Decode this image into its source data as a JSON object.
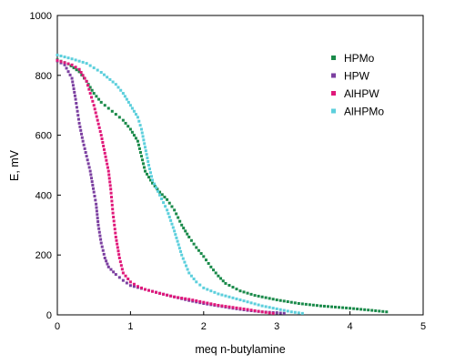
{
  "chart_data": {
    "type": "scatter",
    "xlabel": "meq n-butylamine",
    "ylabel": "E, mV",
    "xlim": [
      0,
      5
    ],
    "ylim": [
      0,
      1000
    ],
    "xticks": [
      "0",
      "1",
      "2",
      "3",
      "4",
      "5"
    ],
    "yticks": [
      "0",
      "200",
      "400",
      "600",
      "800",
      "1000"
    ],
    "grid": false,
    "legend_position": "top-right",
    "series": [
      {
        "name": "HPMo",
        "color": "#1a8a4a",
        "curve": [
          [
            0,
            852
          ],
          [
            0.15,
            838
          ],
          [
            0.3,
            812
          ],
          [
            0.4,
            780
          ],
          [
            0.5,
            740
          ],
          [
            0.6,
            710
          ],
          [
            0.7,
            690
          ],
          [
            0.8,
            670
          ],
          [
            0.9,
            650
          ],
          [
            1.0,
            620
          ],
          [
            1.1,
            580
          ],
          [
            1.15,
            530
          ],
          [
            1.2,
            480
          ],
          [
            1.3,
            440
          ],
          [
            1.4,
            410
          ],
          [
            1.5,
            385
          ],
          [
            1.6,
            350
          ],
          [
            1.7,
            300
          ],
          [
            1.8,
            260
          ],
          [
            1.9,
            225
          ],
          [
            2.0,
            195
          ],
          [
            2.1,
            160
          ],
          [
            2.2,
            130
          ],
          [
            2.3,
            105
          ],
          [
            2.5,
            80
          ],
          [
            2.7,
            65
          ],
          [
            3.0,
            50
          ],
          [
            3.3,
            38
          ],
          [
            3.6,
            30
          ],
          [
            4.0,
            22
          ],
          [
            4.3,
            15
          ],
          [
            4.5,
            10
          ]
        ]
      },
      {
        "name": "HPW",
        "color": "#7b3fa0",
        "curve": [
          [
            0,
            848
          ],
          [
            0.1,
            835
          ],
          [
            0.2,
            790
          ],
          [
            0.25,
            720
          ],
          [
            0.3,
            640
          ],
          [
            0.35,
            580
          ],
          [
            0.4,
            530
          ],
          [
            0.45,
            480
          ],
          [
            0.5,
            410
          ],
          [
            0.53,
            370
          ],
          [
            0.56,
            300
          ],
          [
            0.6,
            240
          ],
          [
            0.65,
            190
          ],
          [
            0.7,
            160
          ],
          [
            0.8,
            135
          ],
          [
            0.9,
            115
          ],
          [
            1.0,
            98
          ],
          [
            1.2,
            85
          ],
          [
            1.4,
            72
          ],
          [
            1.6,
            60
          ],
          [
            1.8,
            48
          ],
          [
            2.0,
            38
          ],
          [
            2.2,
            30
          ],
          [
            2.4,
            22
          ],
          [
            2.6,
            15
          ],
          [
            2.8,
            10
          ],
          [
            3.0,
            7
          ],
          [
            3.1,
            5
          ]
        ]
      },
      {
        "name": "AlHPW",
        "color": "#e0187a",
        "curve": [
          [
            0,
            850
          ],
          [
            0.2,
            835
          ],
          [
            0.3,
            820
          ],
          [
            0.4,
            780
          ],
          [
            0.45,
            740
          ],
          [
            0.5,
            700
          ],
          [
            0.55,
            650
          ],
          [
            0.6,
            600
          ],
          [
            0.65,
            540
          ],
          [
            0.7,
            480
          ],
          [
            0.73,
            420
          ],
          [
            0.76,
            340
          ],
          [
            0.8,
            260
          ],
          [
            0.85,
            190
          ],
          [
            0.9,
            140
          ],
          [
            1.0,
            110
          ],
          [
            1.1,
            95
          ],
          [
            1.2,
            85
          ],
          [
            1.4,
            72
          ],
          [
            1.6,
            60
          ],
          [
            1.8,
            52
          ],
          [
            2.0,
            42
          ],
          [
            2.2,
            32
          ],
          [
            2.4,
            25
          ],
          [
            2.6,
            18
          ],
          [
            2.8,
            10
          ],
          [
            2.95,
            5
          ]
        ]
      },
      {
        "name": "AlHPMo",
        "color": "#5ccfdc",
        "curve": [
          [
            0,
            868
          ],
          [
            0.2,
            855
          ],
          [
            0.4,
            840
          ],
          [
            0.6,
            810
          ],
          [
            0.8,
            770
          ],
          [
            0.9,
            740
          ],
          [
            1.0,
            700
          ],
          [
            1.1,
            660
          ],
          [
            1.15,
            620
          ],
          [
            1.2,
            560
          ],
          [
            1.25,
            500
          ],
          [
            1.3,
            450
          ],
          [
            1.4,
            400
          ],
          [
            1.5,
            350
          ],
          [
            1.6,
            280
          ],
          [
            1.7,
            200
          ],
          [
            1.8,
            140
          ],
          [
            1.9,
            110
          ],
          [
            2.0,
            90
          ],
          [
            2.2,
            70
          ],
          [
            2.5,
            50
          ],
          [
            2.8,
            30
          ],
          [
            3.0,
            20
          ],
          [
            3.2,
            10
          ],
          [
            3.35,
            5
          ]
        ]
      }
    ]
  }
}
